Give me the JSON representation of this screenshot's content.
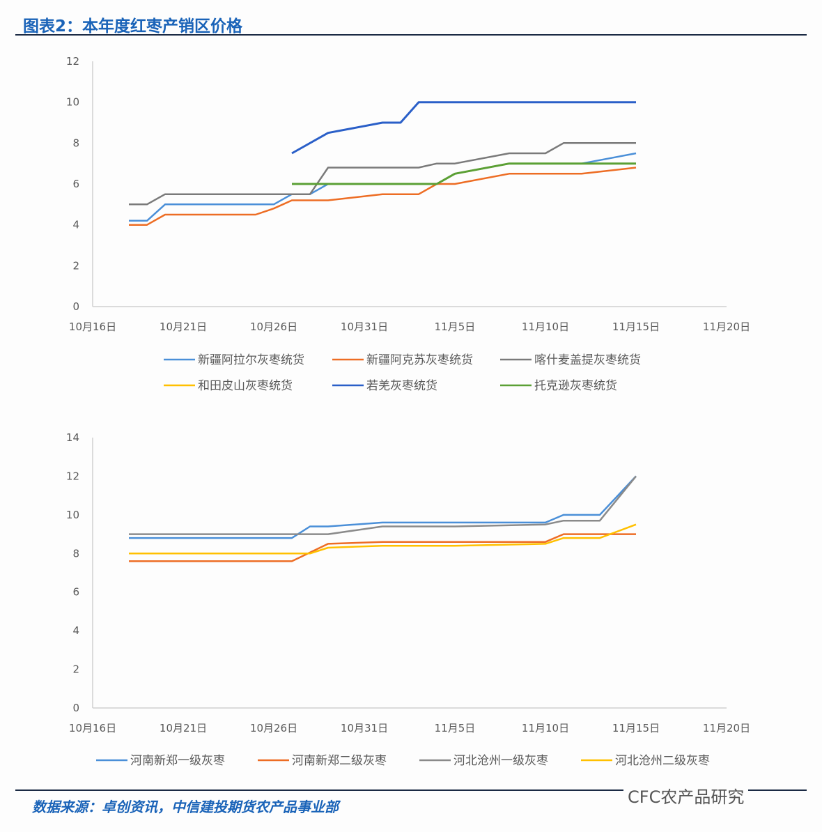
{
  "title": "图表2：本年度红枣产销区价格",
  "source": "数据来源：卓创资讯，中信建投期货农产品事业部",
  "watermark": "CFC农产品研究",
  "chart_data": [
    {
      "type": "line",
      "title": "",
      "xlabel": "",
      "ylabel": "",
      "ylim": [
        0,
        12
      ],
      "yticks": [
        "0",
        "2",
        "4",
        "6",
        "8",
        "10",
        "12"
      ],
      "xlim": [
        "10-16",
        "11-20"
      ],
      "xtick_labels": [
        "10月16日",
        "10月21日",
        "10月26日",
        "10月31日",
        "11月5日",
        "11月10日",
        "11月15日",
        "11月20日"
      ],
      "xtick_dates": [
        "10-16",
        "10-21",
        "10-26",
        "10-31",
        "11-05",
        "11-10",
        "11-15",
        "11-20"
      ],
      "grid": false,
      "legend": "bottom",
      "series": [
        {
          "name": "新疆阿拉尔灰枣统货",
          "color": "#4a8fd8",
          "points": [
            [
              "10-18",
              4.2
            ],
            [
              "10-19",
              4.2
            ],
            [
              "10-20",
              5
            ],
            [
              "10-26",
              5
            ],
            [
              "10-27",
              5.5
            ],
            [
              "10-28",
              5.5
            ],
            [
              "10-29",
              6
            ],
            [
              "11-04",
              6
            ],
            [
              "11-05",
              6.5
            ],
            [
              "11-08",
              7
            ],
            [
              "11-12",
              7
            ],
            [
              "11-15",
              7.5
            ]
          ]
        },
        {
          "name": "新疆阿克苏灰枣统货",
          "color": "#ed6d24",
          "points": [
            [
              "10-18",
              4
            ],
            [
              "10-19",
              4
            ],
            [
              "10-20",
              4.5
            ],
            [
              "10-25",
              4.5
            ],
            [
              "10-26",
              4.8
            ],
            [
              "10-27",
              5.2
            ],
            [
              "10-29",
              5.2
            ],
            [
              "11-01",
              5.5
            ],
            [
              "11-03",
              5.5
            ],
            [
              "11-04",
              6
            ],
            [
              "11-05",
              6
            ],
            [
              "11-08",
              6.5
            ],
            [
              "11-12",
              6.5
            ],
            [
              "11-15",
              6.8
            ]
          ]
        },
        {
          "name": "喀什麦盖提灰枣统货",
          "color": "#7a7a7a",
          "points": [
            [
              "10-18",
              5
            ],
            [
              "10-19",
              5
            ],
            [
              "10-20",
              5.5
            ],
            [
              "10-28",
              5.5
            ],
            [
              "10-29",
              6.8
            ],
            [
              "11-03",
              6.8
            ],
            [
              "11-04",
              7
            ],
            [
              "11-05",
              7
            ],
            [
              "11-08",
              7.5
            ],
            [
              "11-10",
              7.5
            ],
            [
              "11-11",
              8
            ],
            [
              "11-15",
              8
            ]
          ]
        },
        {
          "name": "和田皮山灰枣统货",
          "color": "#ffc000",
          "points": [
            [
              "10-27",
              6
            ],
            [
              "11-04",
              6
            ],
            [
              "11-05",
              6.5
            ],
            [
              "11-08",
              7
            ],
            [
              "11-15",
              7
            ]
          ]
        },
        {
          "name": "若羌灰枣统货",
          "color": "#2a5fc8",
          "points": [
            [
              "10-27",
              7.5
            ],
            [
              "10-29",
              8.5
            ],
            [
              "11-01",
              9
            ],
            [
              "11-02",
              9
            ],
            [
              "11-03",
              10
            ],
            [
              "11-15",
              10
            ]
          ]
        },
        {
          "name": "托克逊灰枣统货",
          "color": "#5ba035",
          "points": [
            [
              "10-27",
              6
            ],
            [
              "11-04",
              6
            ],
            [
              "11-05",
              6.5
            ],
            [
              "11-08",
              7
            ],
            [
              "11-15",
              7
            ]
          ]
        }
      ]
    },
    {
      "type": "line",
      "title": "",
      "xlabel": "",
      "ylabel": "",
      "ylim": [
        0,
        14
      ],
      "yticks": [
        "0",
        "2",
        "4",
        "6",
        "8",
        "10",
        "12",
        "14"
      ],
      "xlim": [
        "10-16",
        "11-20"
      ],
      "xtick_labels": [
        "10月16日",
        "10月21日",
        "10月26日",
        "10月31日",
        "11月5日",
        "11月10日",
        "11月15日",
        "11月20日"
      ],
      "xtick_dates": [
        "10-16",
        "10-21",
        "10-26",
        "10-31",
        "11-05",
        "11-10",
        "11-15",
        "11-20"
      ],
      "grid": false,
      "legend": "bottom",
      "series": [
        {
          "name": "河南新郑一级灰枣",
          "color": "#4a8fd8",
          "points": [
            [
              "10-18",
              8.8
            ],
            [
              "10-27",
              8.8
            ],
            [
              "10-28",
              9.4
            ],
            [
              "10-29",
              9.4
            ],
            [
              "11-01",
              9.6
            ],
            [
              "11-10",
              9.6
            ],
            [
              "11-11",
              10
            ],
            [
              "11-13",
              10
            ],
            [
              "11-15",
              12
            ]
          ]
        },
        {
          "name": "河南新郑二级灰枣",
          "color": "#ed6d24",
          "points": [
            [
              "10-18",
              7.6
            ],
            [
              "10-27",
              7.6
            ],
            [
              "10-29",
              8.5
            ],
            [
              "11-01",
              8.6
            ],
            [
              "11-10",
              8.6
            ],
            [
              "11-11",
              9
            ],
            [
              "11-15",
              9
            ]
          ]
        },
        {
          "name": "河北沧州一级灰枣",
          "color": "#8a8a8a",
          "points": [
            [
              "10-18",
              9
            ],
            [
              "10-29",
              9
            ],
            [
              "11-01",
              9.4
            ],
            [
              "11-05",
              9.4
            ],
            [
              "11-10",
              9.5
            ],
            [
              "11-11",
              9.7
            ],
            [
              "11-13",
              9.7
            ],
            [
              "11-15",
              12
            ]
          ]
        },
        {
          "name": "河北沧州二级灰枣",
          "color": "#ffc000",
          "points": [
            [
              "10-18",
              8
            ],
            [
              "10-28",
              8
            ],
            [
              "10-29",
              8.3
            ],
            [
              "11-01",
              8.4
            ],
            [
              "11-05",
              8.4
            ],
            [
              "11-10",
              8.5
            ],
            [
              "11-11",
              8.8
            ],
            [
              "11-13",
              8.8
            ],
            [
              "11-15",
              9.5
            ]
          ]
        }
      ]
    }
  ]
}
